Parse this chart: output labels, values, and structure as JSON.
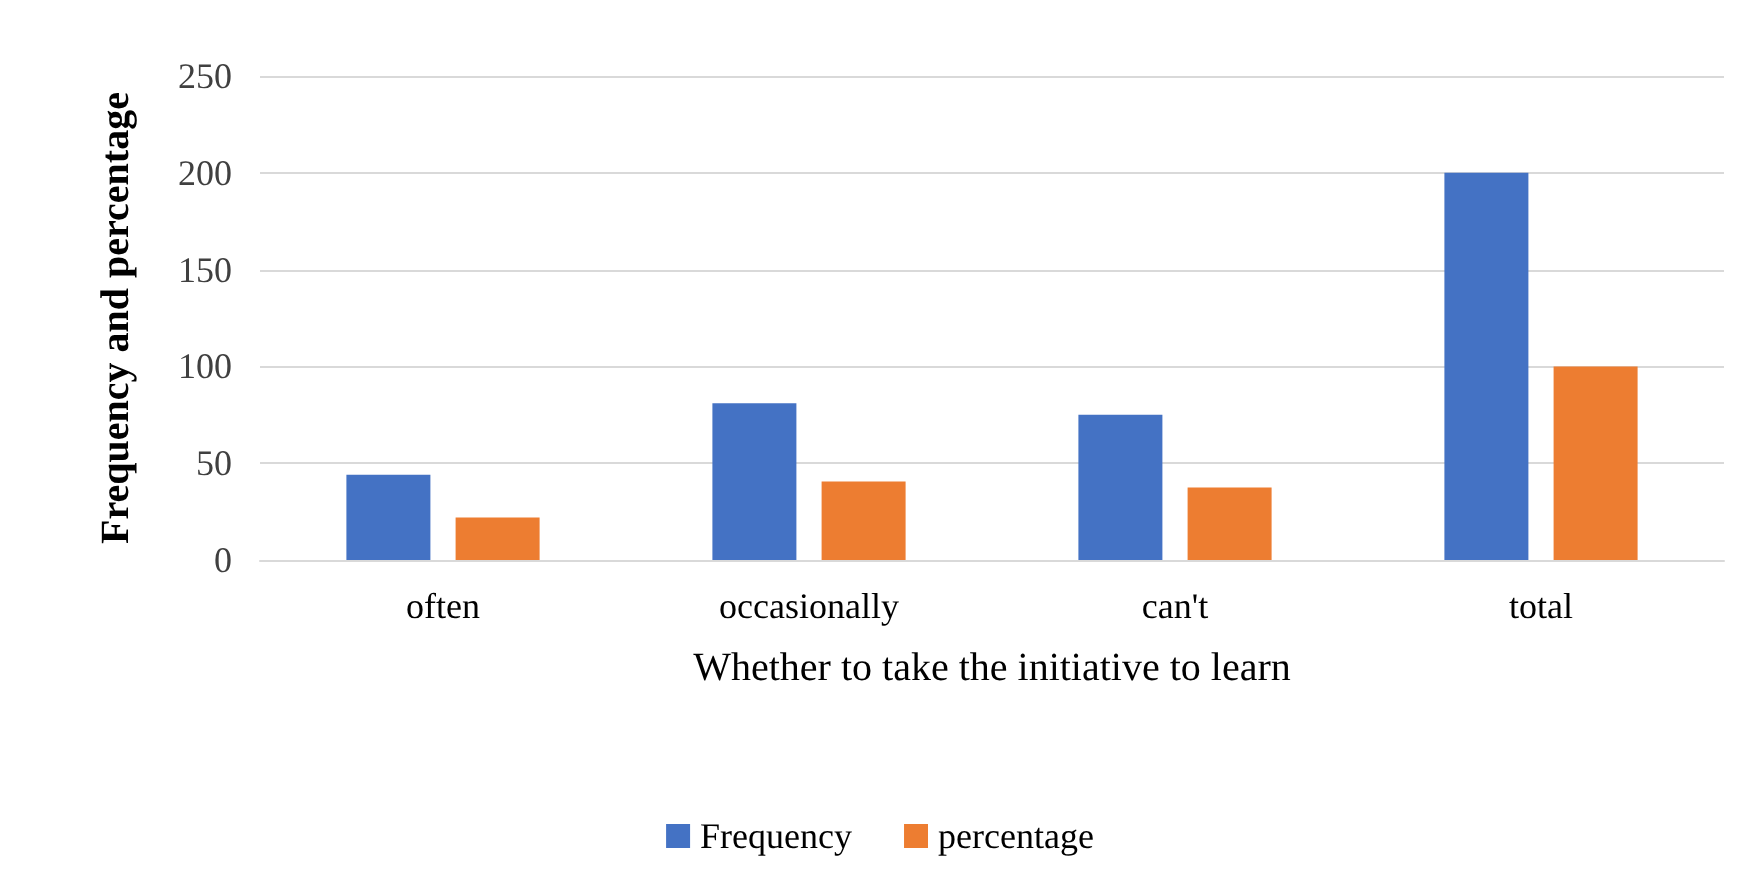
{
  "chart_data": {
    "type": "bar",
    "xlabel": "Whether to take the initiative to learn",
    "ylabel": "Frequency and percentage",
    "categories": [
      "often",
      "occasionally",
      "can't",
      "total"
    ],
    "series": [
      {
        "name": "Frequency",
        "color": "#4472c4",
        "values": [
          44,
          81,
          75,
          200
        ]
      },
      {
        "name": "percentage",
        "color": "#ed7d31",
        "values": [
          22,
          40.5,
          37.5,
          100
        ]
      }
    ],
    "ylim": [
      0,
      250
    ],
    "yticks": [
      0,
      50,
      100,
      150,
      200,
      250
    ],
    "grid": "y",
    "legend": "bottom"
  }
}
